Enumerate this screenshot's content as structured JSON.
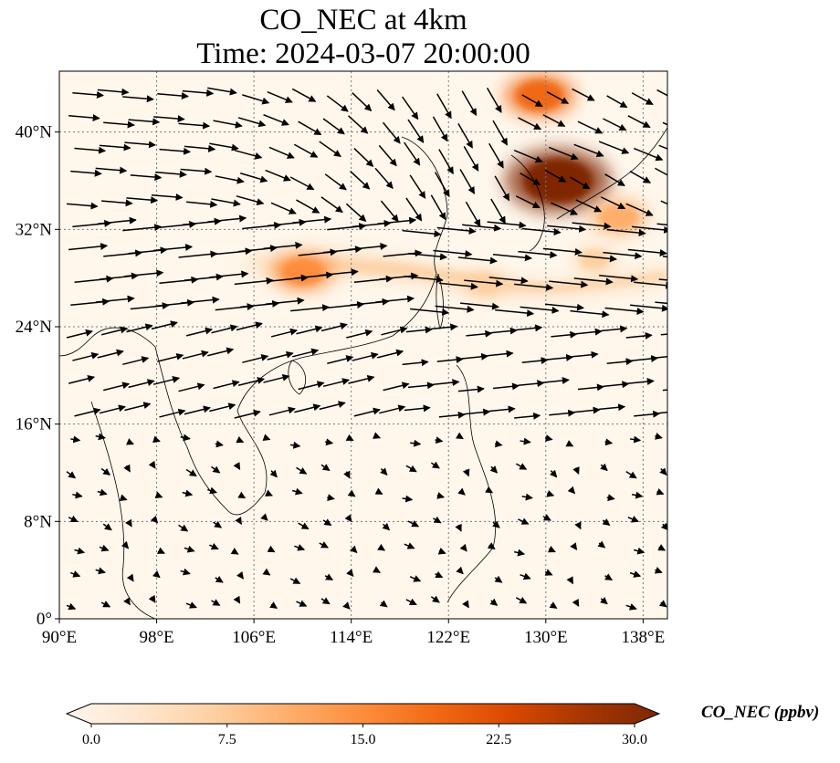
{
  "title": "CO_NEC at 4km",
  "subtitle": "Time: 2024-03-07 20:00:00",
  "colorbar": {
    "label": "CO_NEC (ppbv)",
    "ticks": [
      "0.0",
      "7.5",
      "15.0",
      "22.5",
      "30.0"
    ],
    "min": 0,
    "max": 30,
    "colormap": [
      "#fff5eb",
      "#fee6ce",
      "#fdd0a2",
      "#fdae6b",
      "#fd8d3c",
      "#f16913",
      "#d94801",
      "#a63603",
      "#7f2704"
    ]
  },
  "map": {
    "lon_range": [
      90,
      140
    ],
    "lat_range": [
      0,
      45
    ],
    "lon_ticks": [
      "90°E",
      "98°E",
      "106°E",
      "114°E",
      "122°E",
      "130°E",
      "138°E"
    ],
    "lat_ticks": [
      "0°",
      "8°N",
      "16°N",
      "24°N",
      "32°N",
      "40°N"
    ],
    "gridlines": true
  },
  "chart_data": {
    "type": "heatmap",
    "variable": "CO_NEC",
    "units": "ppbv",
    "hotspots": [
      {
        "lon": 131,
        "lat": 36,
        "value": 30
      },
      {
        "lon": 129.5,
        "lat": 43,
        "value": 17
      },
      {
        "lon": 136,
        "lat": 33,
        "value": 12
      },
      {
        "lon": 110,
        "lat": 28.5,
        "value": 14
      },
      {
        "lon": 125,
        "lat": 27.5,
        "value": 7
      },
      {
        "lon": 134,
        "lat": 29.5,
        "value": 6
      }
    ]
  }
}
